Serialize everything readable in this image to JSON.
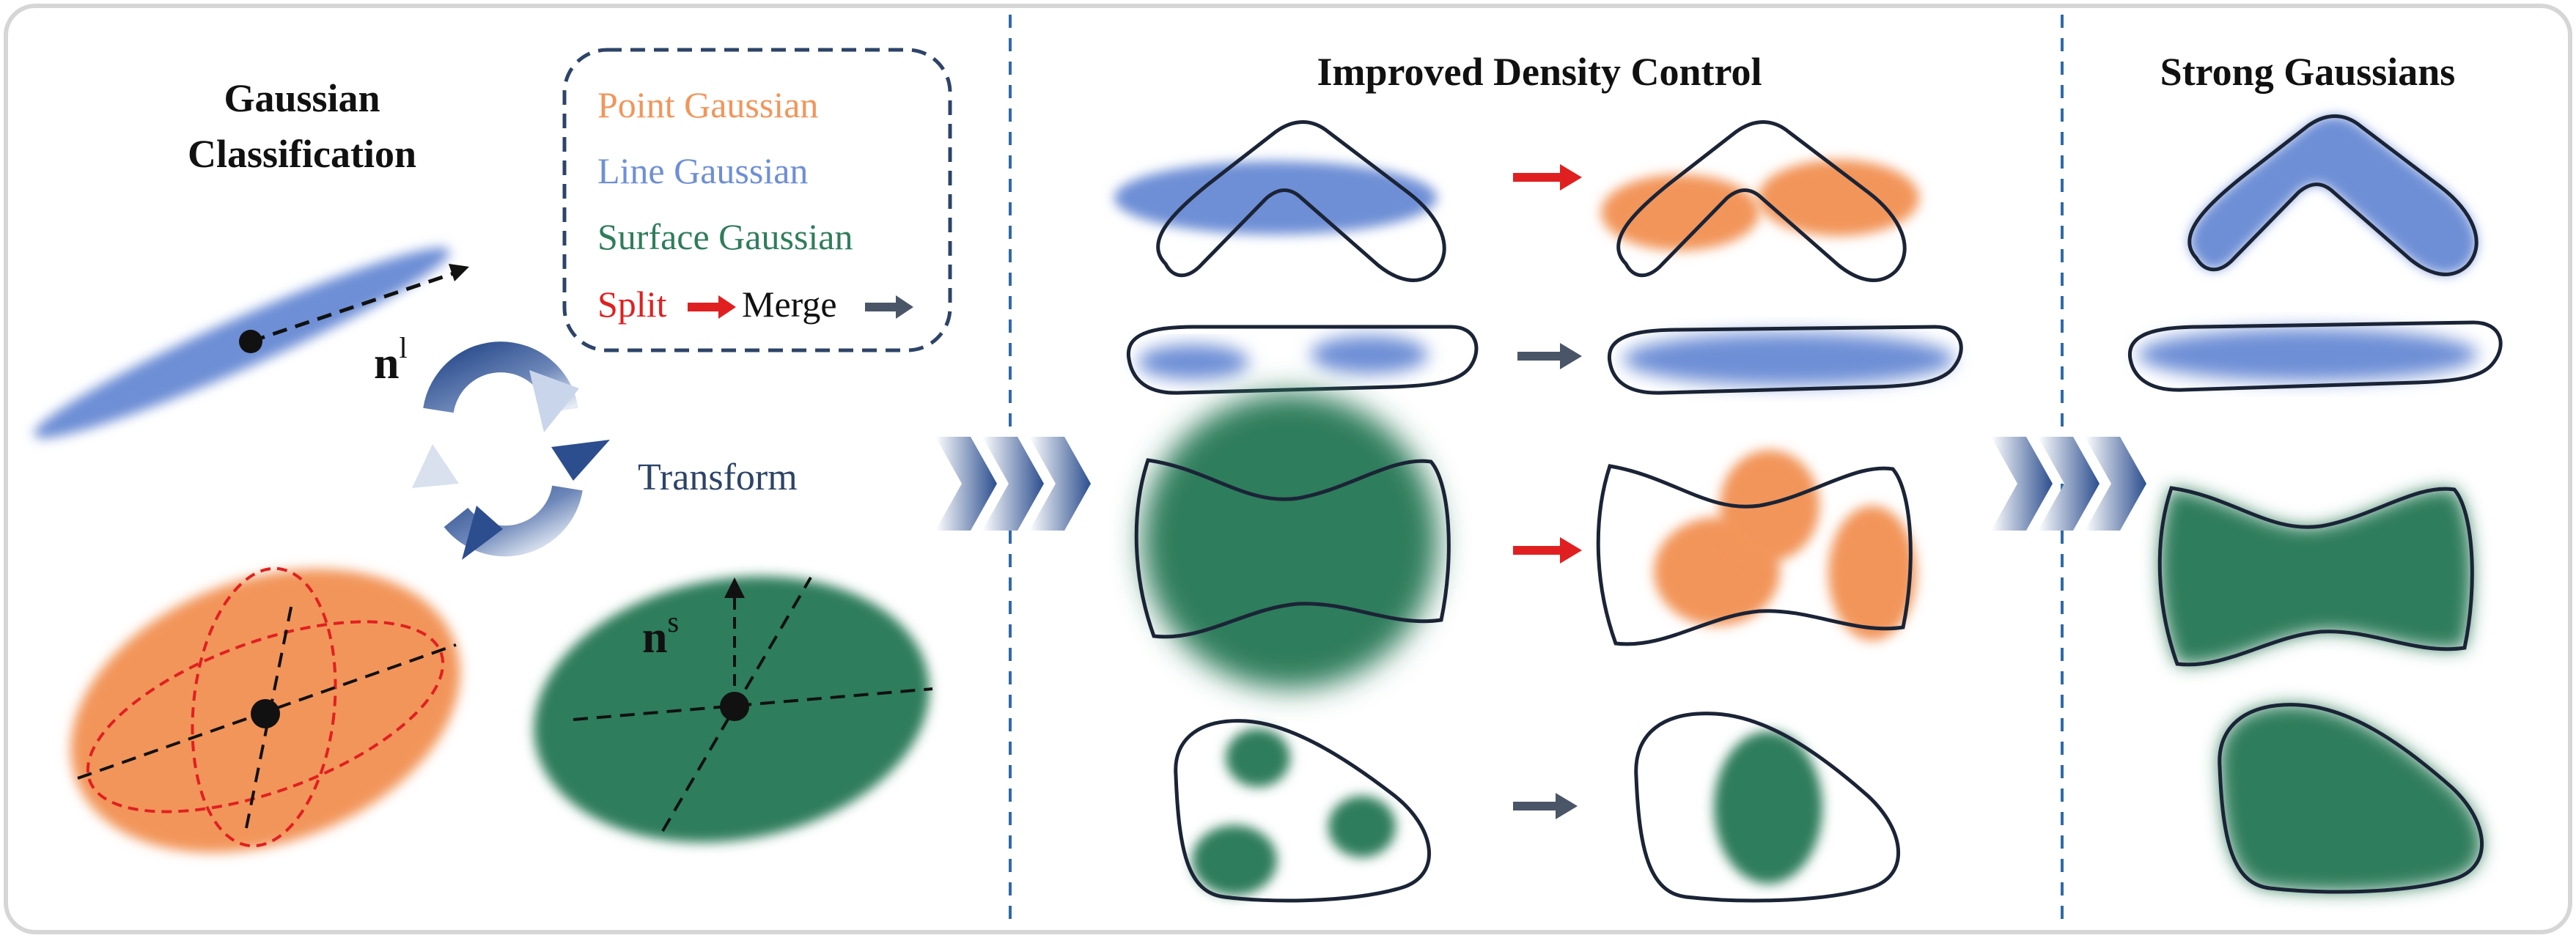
{
  "panels": {
    "classification": {
      "title_line1": "Gaussian",
      "title_line2": "Classification"
    },
    "density": {
      "title": "Improved Density Control"
    },
    "strong": {
      "title": "Strong Gaussians"
    }
  },
  "legend": {
    "point": "Point Gaussian",
    "line": "Line Gaussian",
    "surface": "Surface Gaussian",
    "split": "Split",
    "merge": "Merge"
  },
  "labels": {
    "transform": "Transform",
    "line_normal_base": "n",
    "line_normal_sup": "l",
    "surface_normal_base": "n",
    "surface_normal_sup": "s"
  },
  "colors": {
    "point": "#F2955A",
    "line": "#6E8FD6",
    "surface": "#2E7D5B",
    "split_arrow": "#E02020",
    "merge_arrow": "#4A5568",
    "divider": "#2F6AA8",
    "transform_ring": "#2F4F8F",
    "legend_border": "#2D4468",
    "outline": "#1B2436"
  },
  "icons": [
    "circular-arrows-icon",
    "chevron-right-icon",
    "split-arrow-icon",
    "merge-arrow-icon",
    "arrow-head-icon"
  ]
}
